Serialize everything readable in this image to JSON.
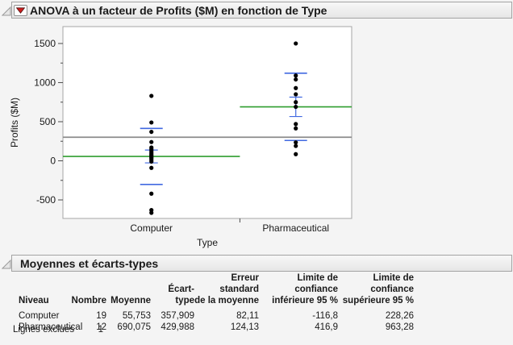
{
  "window": {
    "app": "JMP oneway ANOVA report"
  },
  "sections": {
    "anova": {
      "title": "ANOVA à un facteur de Profits ($M) en fonction de Type"
    },
    "means": {
      "title": "Moyennes et écarts-types"
    }
  },
  "icons": {
    "disclosure": "open-disclosure-triangle",
    "red_triangle": "red-triangle-menu"
  },
  "chart_data": {
    "type": "scatter",
    "title": "",
    "xlabel": "Type",
    "ylabel": "Profits ($M)",
    "categories": [
      "Computer",
      "Pharmaceutical"
    ],
    "ylim": [
      -737,
      1716
    ],
    "y_major_ticks": [
      1500,
      1000,
      500,
      0,
      -500
    ],
    "y_minor_ticks": [
      1250,
      750,
      250,
      -250
    ],
    "grand_mean": 301.3,
    "grid": false,
    "legend": "none",
    "groups": [
      {
        "label": "Computer",
        "n": 19,
        "mean": 55.753,
        "sd": 357.909,
        "se": 82.11,
        "values": [
          830,
          490,
          370,
          240,
          170,
          150,
          130,
          110,
          90,
          75,
          60,
          45,
          30,
          10,
          -10,
          -90,
          -420,
          -630,
          -665
        ]
      },
      {
        "label": "Pharmaceutical",
        "n": 12,
        "mean": 690.075,
        "sd": 429.988,
        "se": 124.13,
        "values": [
          1500,
          1090,
          1040,
          930,
          850,
          750,
          690,
          470,
          415,
          235,
          190,
          85
        ]
      }
    ],
    "colors": {
      "mean_line": "#2f9e2f",
      "std_blue": "#4169e1",
      "grand_mean_line": "#8c8c8c",
      "point": "#000000",
      "frame": "#a6a6a6",
      "tick": "#4d4d4d"
    }
  },
  "stats_table": {
    "headers": {
      "niveau": "Niveau",
      "nombre": "Nombre",
      "moyenne": "Moyenne",
      "ecart": "Écart-type",
      "erreur_l1": "Erreur standard",
      "erreur_l2": "de la moyenne",
      "linf_l1": "Limite de confiance",
      "linf_l2": "inférieure 95 %",
      "lsup_l1": "Limite de confiance",
      "lsup_l2": "supérieure 95 %"
    },
    "rows": [
      {
        "niveau": "Computer",
        "nombre": "19",
        "moyenne": "55,753",
        "ecart": "357,909",
        "erreur": "82,11",
        "linf": "-116,8",
        "lsup": "228,26"
      },
      {
        "niveau": "Pharmaceutical",
        "nombre": "12",
        "moyenne": "690,075",
        "ecart": "429,988",
        "erreur": "124,13",
        "linf": "416,9",
        "lsup": "963,28"
      }
    ],
    "footer": {
      "label": "Lignes exclues",
      "value": "1"
    }
  }
}
